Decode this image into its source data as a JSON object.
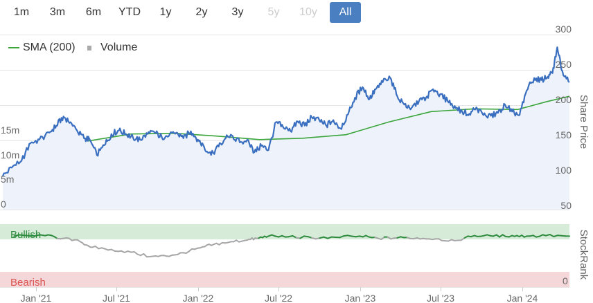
{
  "range_selector": {
    "buttons": [
      {
        "label": "1m",
        "state": "normal"
      },
      {
        "label": "3m",
        "state": "normal"
      },
      {
        "label": "6m",
        "state": "normal"
      },
      {
        "label": "YTD",
        "state": "normal"
      },
      {
        "label": "1y",
        "state": "normal"
      },
      {
        "label": "2y",
        "state": "normal"
      },
      {
        "label": "3y",
        "state": "normal"
      },
      {
        "label": "5y",
        "state": "disabled"
      },
      {
        "label": "10y",
        "state": "disabled"
      },
      {
        "label": "All",
        "state": "active"
      }
    ]
  },
  "legend": {
    "sma": {
      "label": "SMA (200)",
      "color": "#3aa53a"
    },
    "volume": {
      "label": "Volume",
      "color": "#aaaaaa"
    }
  },
  "colors": {
    "price_line": "#3a6fc0",
    "price_fill": "#eef2fa",
    "bullish_band": "#d6ecd9",
    "bearish_band": "#f6d7d9",
    "bullish_line": "#2e8b3e",
    "neutral_line": "#a6a6a6"
  },
  "chart_data": [
    {
      "type": "line",
      "ylabel": "Share Price",
      "ylim": [
        50,
        300
      ],
      "y_ticks": [
        "50",
        "100",
        "150",
        "200",
        "250",
        "300"
      ],
      "volume_ticks": [
        "0",
        "5m",
        "10m",
        "15m"
      ],
      "x_ticks": [
        "Jan '21",
        "Jul '21",
        "Jan '22",
        "Jul '22",
        "Jan '23",
        "Jul '23",
        "Jan '24"
      ],
      "series": [
        {
          "name": "SMA (200)",
          "x": [
            "2021-07-01",
            "2021-10-01",
            "2022-01-01",
            "2022-04-01",
            "2022-07-01",
            "2022-10-01",
            "2023-01-01",
            "2023-04-01",
            "2023-07-01",
            "2023-10-01",
            "2024-01-01",
            "2024-03-01",
            "2024-04-20"
          ],
          "values": [
            148,
            158,
            159,
            155,
            150,
            152,
            157,
            175,
            190,
            194,
            193,
            204,
            212
          ]
        },
        {
          "x": [
            "2021-01-01",
            "2021-01-20",
            "2021-02-10",
            "2021-03-01",
            "2021-03-20",
            "2021-04-10",
            "2021-04-25",
            "2021-05-10",
            "2021-05-25",
            "2021-06-10",
            "2021-06-25",
            "2021-07-05",
            "2021-07-20",
            "2021-08-05",
            "2021-08-20",
            "2021-09-05",
            "2021-09-20",
            "2021-10-05",
            "2021-10-20",
            "2021-11-05",
            "2021-11-20",
            "2021-12-05",
            "2021-12-20",
            "2022-01-05",
            "2022-01-20",
            "2022-02-05",
            "2022-02-20",
            "2022-03-05",
            "2022-03-20",
            "2022-04-05",
            "2022-04-20",
            "2022-05-05",
            "2022-05-20",
            "2022-06-05",
            "2022-06-20",
            "2022-07-05",
            "2022-07-20",
            "2022-08-05",
            "2022-08-20",
            "2022-09-05",
            "2022-09-20",
            "2022-10-05",
            "2022-10-20",
            "2022-11-05",
            "2022-11-20",
            "2022-12-05",
            "2022-12-20",
            "2023-01-05",
            "2023-01-20",
            "2023-02-05",
            "2023-02-20",
            "2023-03-05",
            "2023-03-20",
            "2023-04-05",
            "2023-04-20",
            "2023-05-05",
            "2023-05-20",
            "2023-06-05",
            "2023-06-20",
            "2023-07-05",
            "2023-07-20",
            "2023-08-05",
            "2023-08-20",
            "2023-09-05",
            "2023-09-20",
            "2023-10-05",
            "2023-10-20",
            "2023-11-05",
            "2023-11-20",
            "2023-12-05",
            "2023-12-20",
            "2024-01-05",
            "2024-01-20",
            "2024-02-05",
            "2024-02-20",
            "2024-03-05",
            "2024-03-15",
            "2024-03-25",
            "2024-04-05",
            "2024-04-20"
          ],
          "values": [
            98,
            110,
            120,
            145,
            150,
            160,
            170,
            183,
            175,
            160,
            152,
            150,
            128,
            142,
            158,
            163,
            158,
            153,
            150,
            158,
            160,
            154,
            155,
            160,
            152,
            162,
            150,
            140,
            128,
            140,
            152,
            155,
            146,
            150,
            132,
            141,
            135,
            175,
            168,
            162,
            176,
            170,
            182,
            178,
            170,
            178,
            166,
            186,
            210,
            225,
            208,
            222,
            232,
            238,
            212,
            200,
            195,
            205,
            210,
            222,
            215,
            205,
            198,
            190,
            187,
            196,
            185,
            184,
            188,
            200,
            190,
            185,
            220,
            238,
            235,
            240,
            245,
            282,
            248,
            232
          ]
        }
      ]
    },
    {
      "type": "line",
      "ylabel": "StockRank",
      "y_ticks": [
        "0"
      ],
      "bands": [
        "Bullish",
        "Bearish"
      ],
      "x": [
        "2021-01-25",
        "2021-04-01",
        "2021-05-10",
        "2021-06-15",
        "2021-07-10",
        "2021-08-20",
        "2021-10-01",
        "2021-11-10",
        "2021-12-15",
        "2022-01-20",
        "2022-02-25",
        "2022-03-25",
        "2022-05-01",
        "2022-06-05",
        "2022-06-25",
        "2022-07-20",
        "2022-09-01",
        "2022-10-20",
        "2022-12-10",
        "2023-01-30",
        "2023-03-10",
        "2023-04-20",
        "2023-06-01",
        "2023-07-10",
        "2023-08-20",
        "2023-10-01",
        "2023-11-10",
        "2023-12-20",
        "2024-01-20",
        "2024-03-01",
        "2024-04-20"
      ],
      "values": [
        92,
        93,
        88,
        82,
        72,
        68,
        63,
        55,
        56,
        62,
        71,
        77,
        82,
        85,
        88,
        92,
        91,
        89,
        90,
        92,
        88,
        89,
        89,
        87,
        84,
        93,
        92,
        93,
        92,
        93,
        92
      ]
    }
  ]
}
